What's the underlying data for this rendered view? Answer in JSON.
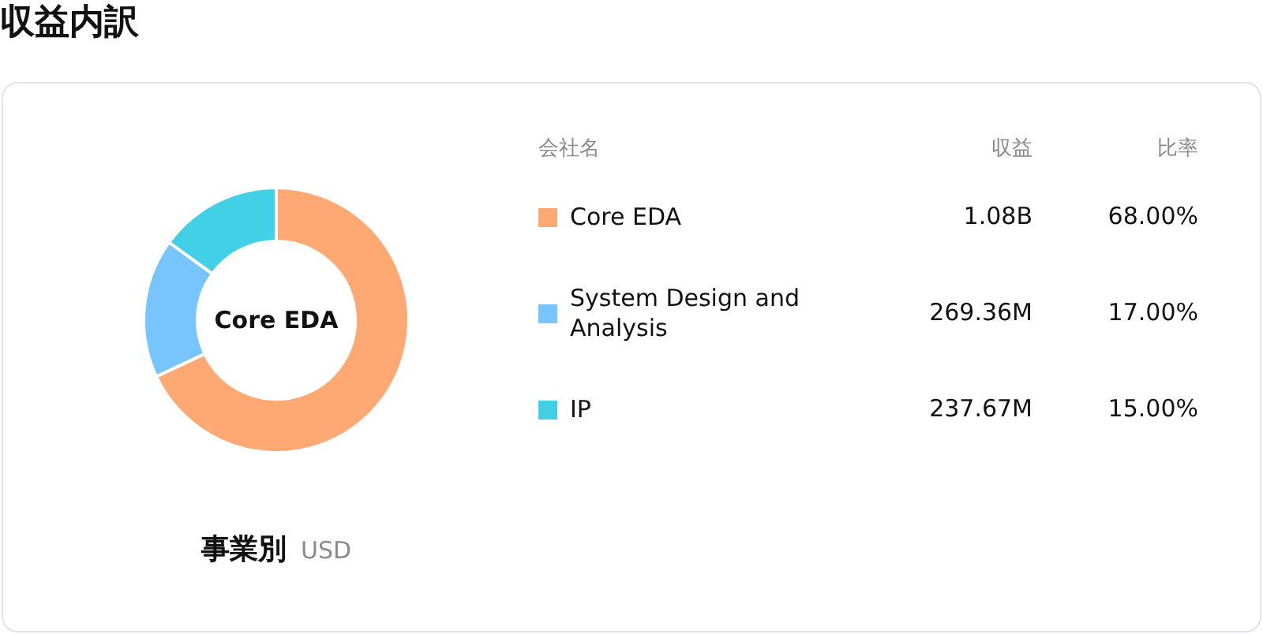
{
  "chart_data": {
    "type": "donut",
    "title": "収益内訳",
    "xlabel": "事業別",
    "legend_title": "会社名",
    "categories": [
      "Core EDA",
      "System Design and Analysis",
      "IP"
    ],
    "values": [
      68,
      17,
      15
    ],
    "colors": [
      "#fea873",
      "#78c4fe",
      "#42d0e6"
    ],
    "value_labels": [
      "68.00%",
      "17.00%",
      "15.00%"
    ],
    "legend": "right",
    "annotations": [
      "Core EDA",
      "USD",
      "収益",
      "比率",
      "1.08B",
      "269.36M",
      "237.67M"
    ]
  }
}
